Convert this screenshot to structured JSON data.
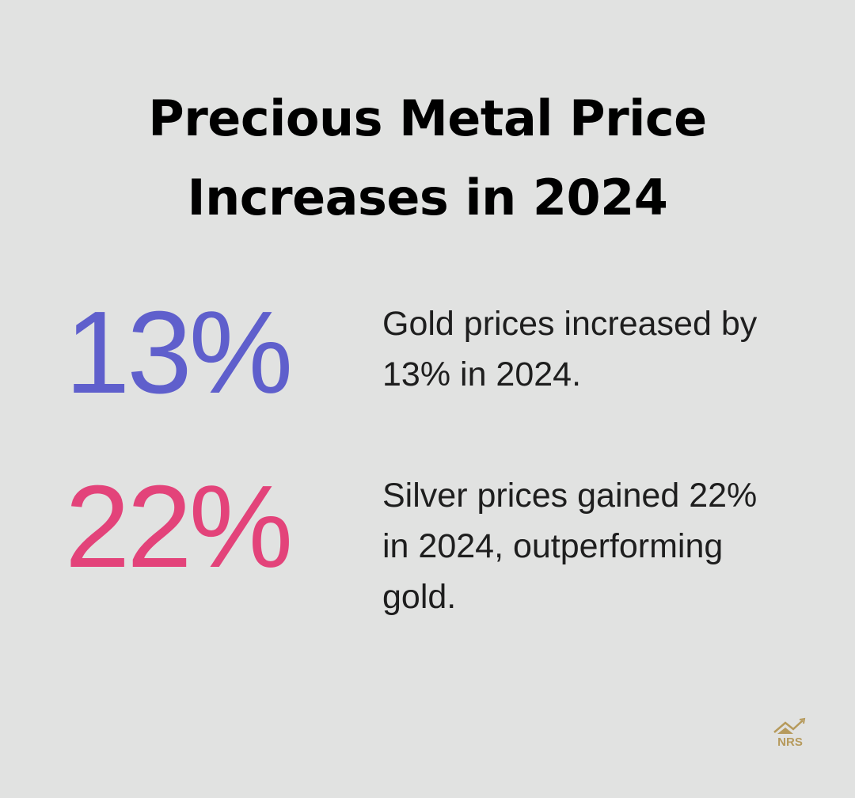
{
  "header": {
    "title": "Precious Metal Price Increases in 2024"
  },
  "stats": [
    {
      "value": "13%",
      "description": "Gold prices increased by 13% in 2024."
    },
    {
      "value": "22%",
      "description": "Silver prices gained 22% in 2024, outperforming gold."
    }
  ],
  "logo": {
    "text": "NRS"
  }
}
